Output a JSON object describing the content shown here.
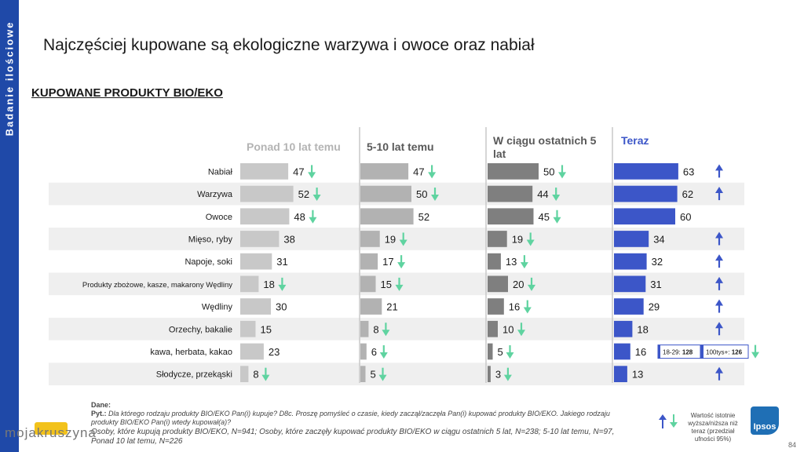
{
  "sidebar": {
    "label": "Badanie ilościowe"
  },
  "title": "Najczęściej kupowane są ekologiczne warzywa i owoce oraz nabiał",
  "subtitle": "KUPOWANE PRODUKTY BIO/EKO",
  "colors": {
    "sidebar": "#1f49a8",
    "col1": "#c8c8c8",
    "col2": "#b2b2b2",
    "col3": "#7f7f7f",
    "col4": "#3c56c8",
    "arrow_down": "#5fd3a0",
    "arrow_up": "#3c56c8"
  },
  "chart_data": {
    "type": "bar",
    "categories": [
      "Nabiał",
      "Warzywa",
      "Owoce",
      "Mięso, ryby",
      "Napoje, soki",
      "Produkty zbożowe, kasze, makarony Wędliny",
      "Wędliny",
      "Orzechy, bakalie",
      "kawa, herbata, kakao",
      "Słodycze, przekąski"
    ],
    "series": [
      {
        "name": "Ponad 10 lat temu",
        "values": [
          47,
          52,
          48,
          38,
          31,
          18,
          30,
          15,
          23,
          8
        ],
        "arrows": [
          "down",
          "down",
          "down",
          "",
          "",
          "down",
          "",
          "",
          "",
          "down"
        ]
      },
      {
        "name": "5-10 lat temu",
        "values": [
          47,
          50,
          52,
          19,
          17,
          15,
          21,
          8,
          6,
          5
        ],
        "arrows": [
          "down",
          "down",
          "",
          "down",
          "down",
          "down",
          "",
          "down",
          "down",
          "down"
        ]
      },
      {
        "name": "W ciągu ostatnich 5 lat",
        "values": [
          50,
          44,
          45,
          19,
          13,
          20,
          16,
          10,
          5,
          3
        ],
        "arrows": [
          "down",
          "down",
          "down",
          "down",
          "down",
          "down",
          "down",
          "down",
          "down",
          "down"
        ]
      },
      {
        "name": "Teraz",
        "values": [
          63,
          62,
          60,
          34,
          32,
          31,
          29,
          18,
          16,
          13
        ],
        "arrows": [
          "up",
          "up",
          "",
          "up",
          "up",
          "up",
          "up",
          "up",
          "",
          "up"
        ]
      }
    ],
    "annotations": [
      {
        "row": "kawa, herbata, kakao",
        "text": "18-29: 128",
        "label": "18-29:",
        "value": "128"
      },
      {
        "row": "kawa, herbata, kakao",
        "text": "100tys+: 126",
        "label": "100tys+:",
        "value": "126"
      }
    ]
  },
  "footer": {
    "dane": "Dane:",
    "pyt_label": "Pyt.:",
    "pyt_text": "Dla którego rodzaju produkty BIO/EKO Pan(i) kupuje? D8c. Proszę pomyśleć o czasie, kiedy zaczął/zaczęła Pan(i) kupować produkty BIO/EKO. Jakiego rodzaju produkty BIO/EKO Pan(i) wtedy kupował(a)?",
    "base": "Osoby, które kupują produkty BIO/EKO, N=941; Osoby, które zaczęły kupować produkty BIO/EKO w ciągu ostatnich 5 lat, N=238; 5-10 lat temu, N=97, Ponad 10 lat temu, N=226"
  },
  "legend": {
    "text": "Wartość istotnie wyższa/niższa niż teraz (przedział ufności 95%)"
  },
  "logo": {
    "text": "Ipsos"
  },
  "page_number": "84",
  "watermark": "mojakruszyna"
}
